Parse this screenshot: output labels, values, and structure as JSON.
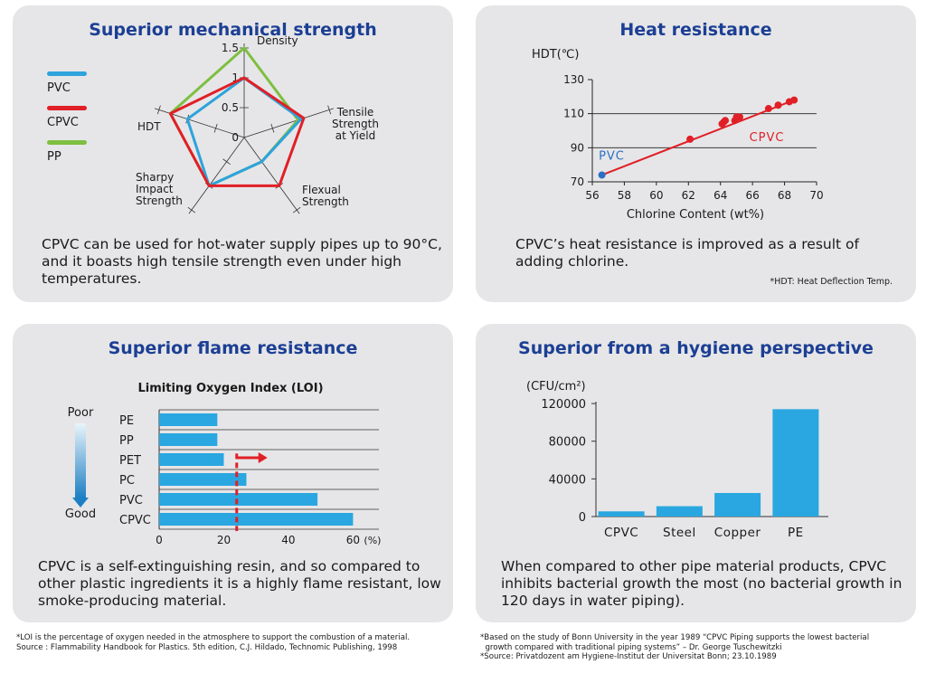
{
  "panels": {
    "mechanical": {
      "title": "Superior mechanical strength",
      "description": "CPVC can be used for hot-water supply pipes up to 90°C, and it boasts high tensile strength even under high temperatures."
    },
    "heat": {
      "title": "Heat resistance",
      "description": "CPVC’s heat resistance is improved as a result of adding chlorine.",
      "note": "*HDT: Heat Deflection Temp."
    },
    "flame": {
      "title": "Superior flame resistance",
      "description": "CPVC is a self-extinguishing resin, and so compared to other plastic ingredients it is a highly flame resistant, low smoke-producing material.",
      "scale_top": "Poor",
      "scale_bottom": "Good"
    },
    "hygiene": {
      "title": "Superior from a hygiene perspective",
      "description": "When compared to other pipe material products, CPVC inhibits bacterial growth the most (no bacterial growth in 120 days in water piping)."
    }
  },
  "footnotes": {
    "left": [
      "*LOI is the percentage of oxygen needed in the atmosphere to support the combustion of a material.",
      "Source : Flammability Handbook for Plastics. 5th edition, C.J. Hildado, Technomic Publishing, 1998"
    ],
    "right": [
      "*Based on the study of Bonn University in the year 1989 “CPVC Piping supports the lowest bacterial",
      "  growth compared with traditional piping systems” – Dr. George Tuschewitzki",
      "*Source: Privatdozent am Hygiene-Institut der Universitat Bonn; 23.10.1989"
    ]
  },
  "chart_data": [
    {
      "type": "radar",
      "axes": [
        "Density",
        "Tensile Strength at Yield",
        "Flexual Strength",
        "Sharpy Impact Strength",
        "HDT"
      ],
      "axis_label_lines": [
        [
          "Density"
        ],
        [
          "Tensile",
          "Strength",
          "at Yield"
        ],
        [
          "Flexual",
          "Strength"
        ],
        [
          "Sharpy",
          "Impact",
          "Strength"
        ],
        [
          "HDT"
        ]
      ],
      "ticks": [
        "0",
        "0.5",
        "1",
        "1.5"
      ],
      "range": [
        0,
        1.5
      ],
      "legend": [
        "PVC",
        "CPVC",
        "PP"
      ],
      "legend_placement": "left",
      "series": [
        {
          "name": "PVC",
          "color": "#2ea3dc",
          "values": [
            1.0,
            1.0,
            0.5,
            1.0,
            1.0
          ]
        },
        {
          "name": "CPVC",
          "color": "#e11f26",
          "values": [
            1.0,
            1.05,
            1.0,
            1.0,
            1.3
          ]
        },
        {
          "name": "PP",
          "color": "#7dbf3f",
          "values": [
            1.5,
            0.95,
            0.5,
            1.0,
            1.3
          ]
        }
      ]
    },
    {
      "type": "line",
      "ylabel": "HDT(℃)",
      "xlabel": "Chlorine Content (wt%)",
      "xlim": [
        56,
        70
      ],
      "ylim": [
        70,
        130
      ],
      "xticks": [
        56,
        58,
        60,
        62,
        64,
        66,
        68,
        70
      ],
      "yticks": [
        70,
        90,
        110,
        130
      ],
      "gridlines_y": [
        90,
        110
      ],
      "series": [
        {
          "name": "CPVC",
          "color": "#e11f26",
          "x": [
            62.1,
            64.1,
            64.2,
            64.3,
            64.9,
            65.0,
            65.2,
            67.0,
            67.6,
            68.3,
            68.6
          ],
          "y": [
            95,
            104,
            105,
            106,
            106,
            108,
            108,
            113,
            115,
            117,
            118
          ]
        },
        {
          "name": "PVC",
          "color": "#2a6fc4",
          "x": [
            56.6
          ],
          "y": [
            74
          ]
        }
      ],
      "trend_line": {
        "x": [
          56.6,
          68.6
        ],
        "y": [
          74,
          118
        ]
      }
    },
    {
      "type": "bar",
      "orientation": "horizontal",
      "title": "Limiting Oxygen Index (LOI)",
      "categories": [
        "PE",
        "PP",
        "PET",
        "PC",
        "PVC",
        "CPVC"
      ],
      "values": [
        18,
        18,
        20,
        27,
        49,
        60
      ],
      "xticks": [
        "0",
        "20",
        "40",
        "60"
      ],
      "xunit": "(%)",
      "xlim": [
        0,
        68
      ],
      "threshold": 24,
      "color": "#2aa7e0"
    },
    {
      "type": "bar",
      "ylabel": "(CFU/cm²)",
      "categories": [
        "CPVC",
        "Steel",
        "Copper",
        "PE"
      ],
      "values": [
        5500,
        11000,
        25000,
        114000
      ],
      "yticks": [
        "0",
        "40000",
        "80000",
        "120000"
      ],
      "ylim": [
        0,
        122000
      ],
      "color": "#2aa7e0"
    }
  ]
}
